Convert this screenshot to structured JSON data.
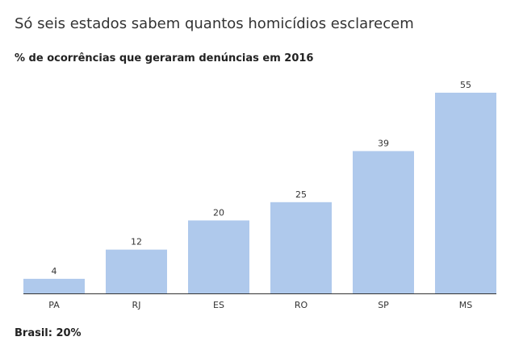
{
  "title": "Só seis estados sabem quantos homicídios esclarecem",
  "subtitle": "% de ocorrências que geraram denúncias em 2016",
  "footnote": "Brasil: 20%",
  "colors": {
    "bar": "#afc9ec",
    "text": "#333333",
    "axis": "#333333"
  },
  "chart_data": {
    "type": "bar",
    "title": "Só seis estados sabem quantos homicídios esclarecem",
    "subtitle": "% de ocorrências que geraram denúncias em 2016",
    "categories": [
      "PA",
      "RJ",
      "ES",
      "RO",
      "SP",
      "MS"
    ],
    "values": [
      4,
      12,
      20,
      25,
      39,
      55
    ],
    "xlabel": "",
    "ylabel": "",
    "ylim": [
      0,
      55
    ],
    "grid": false,
    "data_labels": true
  }
}
